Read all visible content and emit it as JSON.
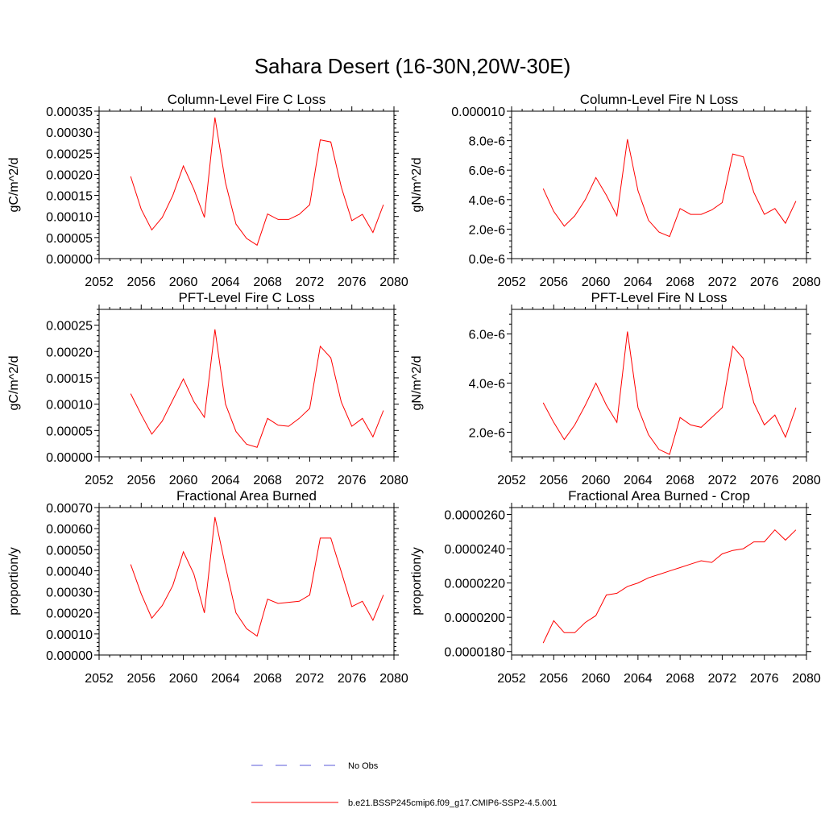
{
  "figure": {
    "title": "Sahara Desert (16-30N,20W-30E)"
  },
  "legend": {
    "entries": [
      {
        "label": "No Obs",
        "color": "#5a5ad8",
        "style": "dashed"
      },
      {
        "label": "b.e21.BSSP245cmip6.f09_g17.CMIP6-SSP2-4.5.001",
        "color": "#ff0000",
        "style": "solid"
      }
    ]
  },
  "chart_data": [
    {
      "type": "line",
      "title": "Column-Level Fire C Loss",
      "ylabel": "gC/m^2/d",
      "xlim": [
        2052,
        2080
      ],
      "ylim": [
        0,
        0.00035
      ],
      "x_ticks": [
        "2052",
        "2056",
        "2060",
        "2064",
        "2068",
        "2072",
        "2076",
        "2080"
      ],
      "y_ticks": [
        {
          "v": 0,
          "label": "0.00000"
        },
        {
          "v": 5e-05,
          "label": "0.00005"
        },
        {
          "v": 0.0001,
          "label": "0.00010"
        },
        {
          "v": 0.00015,
          "label": "0.00015"
        },
        {
          "v": 0.0002,
          "label": "0.00020"
        },
        {
          "v": 0.00025,
          "label": "0.00025"
        },
        {
          "v": 0.0003,
          "label": "0.00030"
        },
        {
          "v": 0.00035,
          "label": "0.00035"
        }
      ],
      "series": [
        {
          "color": "#ff0000",
          "x": [
            2055,
            2056,
            2057,
            2058,
            2059,
            2060,
            2061,
            2062,
            2063,
            2064,
            2065,
            2066,
            2067,
            2068,
            2069,
            2070,
            2071,
            2072,
            2073,
            2074,
            2075,
            2076,
            2077,
            2078,
            2079
          ],
          "y": [
            0.000195,
            0.000117,
            6.8e-05,
            9.8e-05,
            0.00015,
            0.00022,
            0.000165,
            9.8e-05,
            0.000335,
            0.00018,
            8.2e-05,
            4.8e-05,
            3.2e-05,
            0.000106,
            9.3e-05,
            9.3e-05,
            0.000105,
            0.000128,
            0.000282,
            0.000277,
            0.00017,
            9e-05,
            0.000105,
            6.2e-05,
            0.000128
          ]
        }
      ]
    },
    {
      "type": "line",
      "title": "Column-Level Fire N Loss",
      "ylabel": "gN/m^2/d",
      "xlim": [
        2052,
        2080
      ],
      "ylim": [
        0,
        1e-05
      ],
      "x_ticks": [
        "2052",
        "2056",
        "2060",
        "2064",
        "2068",
        "2072",
        "2076",
        "2080"
      ],
      "y_ticks": [
        {
          "v": 0,
          "label": "0.0e-6"
        },
        {
          "v": 2e-06,
          "label": "2.0e-6"
        },
        {
          "v": 4e-06,
          "label": "4.0e-6"
        },
        {
          "v": 6e-06,
          "label": "6.0e-6"
        },
        {
          "v": 8e-06,
          "label": "8.0e-6"
        },
        {
          "v": 1e-05,
          "label": "0.000010"
        }
      ],
      "series": [
        {
          "color": "#ff0000",
          "x": [
            2055,
            2056,
            2057,
            2058,
            2059,
            2060,
            2061,
            2062,
            2063,
            2064,
            2065,
            2066,
            2067,
            2068,
            2069,
            2070,
            2071,
            2072,
            2073,
            2074,
            2075,
            2076,
            2077,
            2078,
            2079
          ],
          "y": [
            4.75e-06,
            3.2e-06,
            2.2e-06,
            2.9e-06,
            4e-06,
            5.5e-06,
            4.3e-06,
            2.9e-06,
            8.1e-06,
            4.6e-06,
            2.6e-06,
            1.8e-06,
            1.5e-06,
            3.4e-06,
            3e-06,
            3e-06,
            3.3e-06,
            3.8e-06,
            7.1e-06,
            6.9e-06,
            4.5e-06,
            3e-06,
            3.4e-06,
            2.4e-06,
            3.9e-06
          ]
        }
      ]
    },
    {
      "type": "line",
      "title": "PFT-Level Fire C Loss",
      "ylabel": "gC/m^2/d",
      "xlim": [
        2052,
        2080
      ],
      "ylim": [
        0,
        0.00028
      ],
      "x_ticks": [
        "2052",
        "2056",
        "2060",
        "2064",
        "2068",
        "2072",
        "2076",
        "2080"
      ],
      "y_ticks": [
        {
          "v": 0,
          "label": "0.00000"
        },
        {
          "v": 5e-05,
          "label": "0.00005"
        },
        {
          "v": 0.0001,
          "label": "0.00010"
        },
        {
          "v": 0.00015,
          "label": "0.00015"
        },
        {
          "v": 0.0002,
          "label": "0.00020"
        },
        {
          "v": 0.00025,
          "label": "0.00025"
        }
      ],
      "series": [
        {
          "color": "#ff0000",
          "x": [
            2055,
            2056,
            2057,
            2058,
            2059,
            2060,
            2061,
            2062,
            2063,
            2064,
            2065,
            2066,
            2067,
            2068,
            2069,
            2070,
            2071,
            2072,
            2073,
            2074,
            2075,
            2076,
            2077,
            2078,
            2079
          ],
          "y": [
            0.00012,
            8e-05,
            4.3e-05,
            6.8e-05,
            0.000108,
            0.000148,
            0.000105,
            7.5e-05,
            0.000242,
            0.0001,
            4.8e-05,
            2.4e-05,
            1.8e-05,
            7.3e-05,
            6e-05,
            5.8e-05,
            7.3e-05,
            9.2e-05,
            0.00021,
            0.000188,
            0.000104,
            5.8e-05,
            7.3e-05,
            3.8e-05,
            8.8e-05
          ]
        }
      ]
    },
    {
      "type": "line",
      "title": "PFT-Level Fire N Loss",
      "ylabel": "gN/m^2/d",
      "xlim": [
        2052,
        2080
      ],
      "ylim": [
        1e-06,
        7e-06
      ],
      "x_ticks": [
        "2052",
        "2056",
        "2060",
        "2064",
        "2068",
        "2072",
        "2076",
        "2080"
      ],
      "y_ticks": [
        {
          "v": 2e-06,
          "label": "2.0e-6"
        },
        {
          "v": 4e-06,
          "label": "4.0e-6"
        },
        {
          "v": 6e-06,
          "label": "6.0e-6"
        }
      ],
      "series": [
        {
          "color": "#ff0000",
          "x": [
            2055,
            2056,
            2057,
            2058,
            2059,
            2060,
            2061,
            2062,
            2063,
            2064,
            2065,
            2066,
            2067,
            2068,
            2069,
            2070,
            2071,
            2072,
            2073,
            2074,
            2075,
            2076,
            2077,
            2078,
            2079
          ],
          "y": [
            3.2e-06,
            2.4e-06,
            1.7e-06,
            2.3e-06,
            3.1e-06,
            4e-06,
            3.1e-06,
            2.4e-06,
            6.1e-06,
            3e-06,
            1.9e-06,
            1.3e-06,
            1.1e-06,
            2.6e-06,
            2.3e-06,
            2.2e-06,
            2.6e-06,
            3e-06,
            5.5e-06,
            5e-06,
            3.2e-06,
            2.3e-06,
            2.7e-06,
            1.8e-06,
            3e-06
          ]
        }
      ]
    },
    {
      "type": "line",
      "title": "Fractional Area Burned",
      "ylabel": "proportion/y",
      "xlim": [
        2052,
        2080
      ],
      "ylim": [
        0,
        0.0007
      ],
      "x_ticks": [
        "2052",
        "2056",
        "2060",
        "2064",
        "2068",
        "2072",
        "2076",
        "2080"
      ],
      "y_ticks": [
        {
          "v": 0,
          "label": "0.00000"
        },
        {
          "v": 0.0001,
          "label": "0.00010"
        },
        {
          "v": 0.0002,
          "label": "0.00020"
        },
        {
          "v": 0.0003,
          "label": "0.00030"
        },
        {
          "v": 0.0004,
          "label": "0.00040"
        },
        {
          "v": 0.0005,
          "label": "0.00050"
        },
        {
          "v": 0.0006,
          "label": "0.00060"
        },
        {
          "v": 0.0007,
          "label": "0.00070"
        }
      ],
      "series": [
        {
          "color": "#ff0000",
          "x": [
            2055,
            2056,
            2057,
            2058,
            2059,
            2060,
            2061,
            2062,
            2063,
            2064,
            2065,
            2066,
            2067,
            2068,
            2069,
            2070,
            2071,
            2072,
            2073,
            2074,
            2075,
            2076,
            2077,
            2078,
            2079
          ],
          "y": [
            0.00043,
            0.00029,
            0.000175,
            0.000235,
            0.00033,
            0.00049,
            0.000385,
            0.0002,
            0.000655,
            0.00042,
            0.0002,
            0.000125,
            9e-05,
            0.000265,
            0.000245,
            0.00025,
            0.000255,
            0.000285,
            0.000555,
            0.000555,
            0.000395,
            0.00023,
            0.000255,
            0.000165,
            0.000285
          ]
        }
      ]
    },
    {
      "type": "line",
      "title": "Fractional Area Burned - Crop",
      "ylabel": "proportion/y",
      "xlim": [
        2052,
        2080
      ],
      "ylim": [
        1.78e-05,
        2.64e-05
      ],
      "x_ticks": [
        "2052",
        "2056",
        "2060",
        "2064",
        "2068",
        "2072",
        "2076",
        "2080"
      ],
      "y_ticks": [
        {
          "v": 1.8e-05,
          "label": "0.0000180"
        },
        {
          "v": 2e-05,
          "label": "0.0000200"
        },
        {
          "v": 2.2e-05,
          "label": "0.0000220"
        },
        {
          "v": 2.4e-05,
          "label": "0.0000240"
        },
        {
          "v": 2.6e-05,
          "label": "0.0000260"
        }
      ],
      "series": [
        {
          "color": "#ff0000",
          "x": [
            2055,
            2056,
            2057,
            2058,
            2059,
            2060,
            2061,
            2062,
            2063,
            2064,
            2065,
            2066,
            2067,
            2068,
            2069,
            2070,
            2071,
            2072,
            2073,
            2074,
            2075,
            2076,
            2077,
            2078,
            2079
          ],
          "y": [
            1.85e-05,
            1.98e-05,
            1.91e-05,
            1.91e-05,
            1.97e-05,
            2.01e-05,
            2.13e-05,
            2.14e-05,
            2.18e-05,
            2.2e-05,
            2.23e-05,
            2.25e-05,
            2.27e-05,
            2.29e-05,
            2.31e-05,
            2.33e-05,
            2.32e-05,
            2.37e-05,
            2.39e-05,
            2.4e-05,
            2.44e-05,
            2.44e-05,
            2.51e-05,
            2.45e-05,
            2.51e-05
          ]
        }
      ]
    }
  ]
}
